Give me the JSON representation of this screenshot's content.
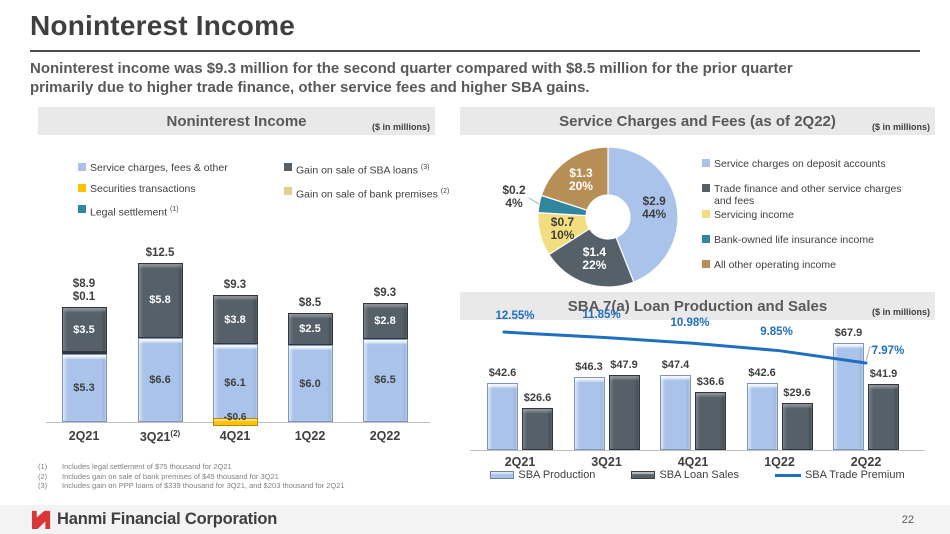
{
  "slide": {
    "title": "Noninterest Income",
    "subtitle_line1": "Noninterest income was $9.3 million for the second quarter compared with $8.5 million for the prior quarter",
    "subtitle_line2": "primarily due to higher trade finance, other service fees and higher SBA gains.",
    "brand": "Hanmi Financial Corporation",
    "page_number": "22"
  },
  "footnotes": [
    {
      "num": "(1)",
      "text": "Includes legal settlement of $75 thousand for 2Q21"
    },
    {
      "num": "(2)",
      "text": "Includes gain on sale of bank premises of $45 thousand for 3Q21"
    },
    {
      "num": "(3)",
      "text": "Includes gain on PPP loans of $339 thousand for 3Q21, and $203 thousand for 2Q21"
    }
  ],
  "colors": {
    "light_blue_bar": "#A9C3EA",
    "slate_bar": "#566069",
    "gold": "#FFC000",
    "teal": "#31859C",
    "khaki": "#DFD18C",
    "brown": "#B78E55",
    "pie_yellow": "#F2DE7E",
    "line_blue": "#1F6FC0",
    "header_gray": "#E9E9E9",
    "brand_red": "#D9363A"
  },
  "chart_data": [
    {
      "id": "noninterest-income",
      "type": "bar",
      "stacked": true,
      "title": "Noninterest Income",
      "units_label": "($ in millions)",
      "categories": [
        "2Q21",
        "3Q21",
        "4Q21",
        "1Q22",
        "2Q22"
      ],
      "category_sups": [
        "",
        "(2)",
        "",
        "",
        ""
      ],
      "series": [
        {
          "name": "Service charges, fees & other",
          "color": "#A9C3EA",
          "label_color": "#3F3F3F",
          "values": [
            5.3,
            6.6,
            6.1,
            6.0,
            6.5
          ]
        },
        {
          "name": "Legal settlement (1)",
          "color": "#31859C",
          "label_color": "#FFFFFF",
          "values": [
            0.1,
            0,
            0,
            0,
            0
          ]
        },
        {
          "name": "Gain on sale of SBA loans (3)",
          "color": "#566069",
          "label_color": "#FFFFFF",
          "values": [
            3.5,
            5.8,
            3.8,
            2.5,
            2.8
          ]
        },
        {
          "name": "Securities transactions",
          "color": "#FFC000",
          "label_color": "#3F3F3F",
          "values": [
            0,
            0,
            -0.6,
            0,
            0
          ]
        },
        {
          "name": "Gain on sale of bank premises (2)",
          "color": "#DFD18C",
          "label_color": "#3F3F3F",
          "values": [
            0,
            0,
            0,
            0,
            0
          ]
        }
      ],
      "totals": [
        "$8.9",
        "$12.5",
        "$9.3",
        "$8.5",
        "$9.3"
      ],
      "secondary_totals": [
        "$0.1",
        "",
        "",
        "",
        ""
      ],
      "legend_columns": [
        [
          {
            "label": "Service charges, fees & other",
            "sup": "",
            "color": "#A9C3EA"
          },
          {
            "label": "Securities transactions",
            "sup": "",
            "color": "#FFC000"
          },
          {
            "label": "Legal settlement",
            "sup": "(1)",
            "color": "#31859C"
          }
        ],
        [
          {
            "label": "Gain on sale of SBA loans",
            "sup": "(3)",
            "color": "#566069"
          },
          {
            "label": "Gain on sale of bank premises",
            "sup": "(2)",
            "color": "#DFD18C"
          }
        ]
      ]
    },
    {
      "id": "service-charges-fees",
      "type": "pie",
      "title": "Service Charges and Fees (as of 2Q22)",
      "units_label": "($ in millions)",
      "slices": [
        {
          "label": "Service charges on deposit accounts",
          "value": 2.9,
          "pct": 44,
          "value_label": "$2.9",
          "pct_label": "44%",
          "color": "#A9C3EA",
          "text_color": "#3F3F3F"
        },
        {
          "label": "Trade finance and other service charges and fees",
          "value": 1.4,
          "pct": 22,
          "value_label": "$1.4",
          "pct_label": "22%",
          "color": "#566069",
          "text_color": "#FFFFFF"
        },
        {
          "label": "Servicing income",
          "value": 0.7,
          "pct": 10,
          "value_label": "$0.7",
          "pct_label": "10%",
          "color": "#F2DE7E",
          "text_color": "#3F3F3F"
        },
        {
          "label": "Bank-owned life insurance income",
          "value": 0.2,
          "pct": 4,
          "value_label": "$0.2",
          "pct_label": "4%",
          "color": "#31859C",
          "text_color": "#3F3F3F",
          "label_outside": true
        },
        {
          "label": "All other operating income",
          "value": 1.3,
          "pct": 20,
          "value_label": "$1.3",
          "pct_label": "20%",
          "color": "#B78E55",
          "text_color": "#FFFFFF"
        }
      ]
    },
    {
      "id": "sba-loan-production-sales",
      "type": "bar+line",
      "title": "SBA 7(a) Loan Production and Sales",
      "units_label": "($ in millions)",
      "categories": [
        "2Q21",
        "3Q21",
        "4Q21",
        "1Q22",
        "2Q22"
      ],
      "series": [
        {
          "name": "SBA Production",
          "color": "#A9C3EA",
          "values": [
            42.6,
            46.3,
            47.4,
            42.6,
            67.9
          ],
          "value_labels": [
            "$42.6",
            "$46.3",
            "$47.4",
            "$42.6",
            "$67.9"
          ]
        },
        {
          "name": "SBA Loan Sales",
          "color": "#566069",
          "values": [
            26.6,
            47.9,
            36.6,
            29.6,
            41.9
          ],
          "value_labels": [
            "$26.6",
            "$47.9",
            "$36.6",
            "$29.6",
            "$41.9"
          ]
        }
      ],
      "line": {
        "name": "SBA Trade Premium",
        "color": "#1F6FC0",
        "values": [
          12.55,
          11.85,
          10.98,
          9.85,
          7.97
        ],
        "value_labels": [
          "12.55%",
          "11.85%",
          "10.98%",
          "9.85%",
          "7.97%"
        ]
      }
    }
  ]
}
